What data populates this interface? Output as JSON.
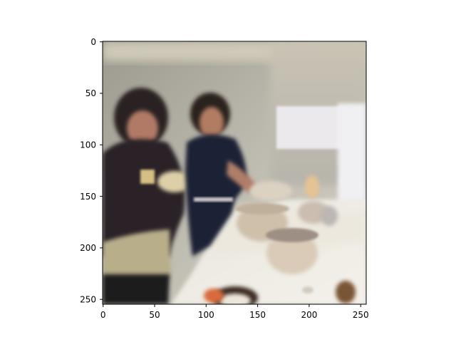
{
  "image_plot": {
    "description": "imshow of a blurry reconstructed image: two people cooking in a kitchen with pots on a counter",
    "x_ticks": [
      "0",
      "50",
      "100",
      "150",
      "200",
      "250"
    ],
    "y_ticks": [
      "0",
      "50",
      "100",
      "150",
      "200",
      "250"
    ],
    "xlim": [
      0,
      256
    ],
    "ylim": [
      256,
      0
    ]
  }
}
